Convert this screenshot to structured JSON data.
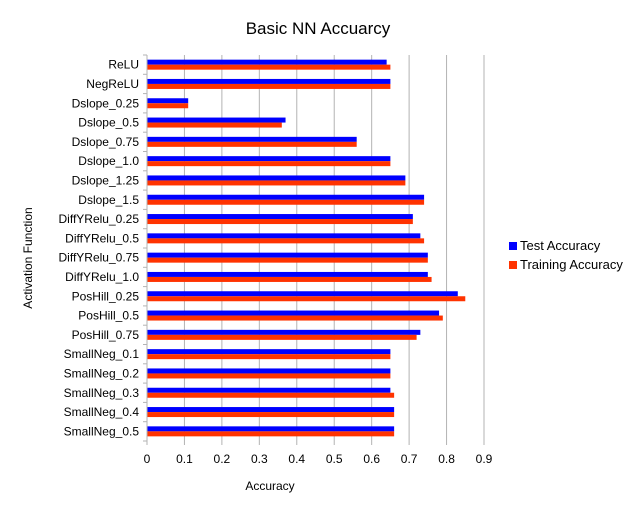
{
  "chart_data": {
    "type": "bar",
    "orientation": "horizontal",
    "title": "Basic NN Accuarcy",
    "xlabel": "Accuracy",
    "ylabel": "Activation Function",
    "xlim": [
      0,
      0.9
    ],
    "x_ticks": [
      "0",
      "0.1",
      "0.2",
      "0.3",
      "0.4",
      "0.5",
      "0.6",
      "0.7",
      "0.8",
      "0.9"
    ],
    "grid": "vertical",
    "legend_position": "right",
    "categories": [
      "ReLU",
      "NegReLU",
      "Dslope_0.25",
      "Dslope_0.5",
      "Dslope_0.75",
      "Dslope_1.0",
      "Dslope_1.25",
      "Dslope_1.5",
      "DiffYRelu_0.25",
      "DiffYRelu_0.5",
      "DiffYRelu_0.75",
      "DiffYRelu_1.0",
      "PosHill_0.25",
      "PosHill_0.5",
      "PosHill_0.75",
      "SmallNeg_0.1",
      "SmallNeg_0.2",
      "SmallNeg_0.3",
      "SmallNeg_0.4",
      "SmallNeg_0.5"
    ],
    "series": [
      {
        "name": "Test Accuracy",
        "color": "#0000ff",
        "values": [
          0.64,
          0.65,
          0.11,
          0.37,
          0.56,
          0.65,
          0.69,
          0.74,
          0.71,
          0.73,
          0.75,
          0.75,
          0.83,
          0.78,
          0.73,
          0.65,
          0.65,
          0.65,
          0.66,
          0.66
        ]
      },
      {
        "name": "Training Accuracy",
        "color": "#ff3300",
        "values": [
          0.65,
          0.65,
          0.11,
          0.36,
          0.56,
          0.65,
          0.69,
          0.74,
          0.71,
          0.74,
          0.75,
          0.76,
          0.85,
          0.79,
          0.72,
          0.65,
          0.65,
          0.66,
          0.66,
          0.66
        ]
      }
    ]
  }
}
